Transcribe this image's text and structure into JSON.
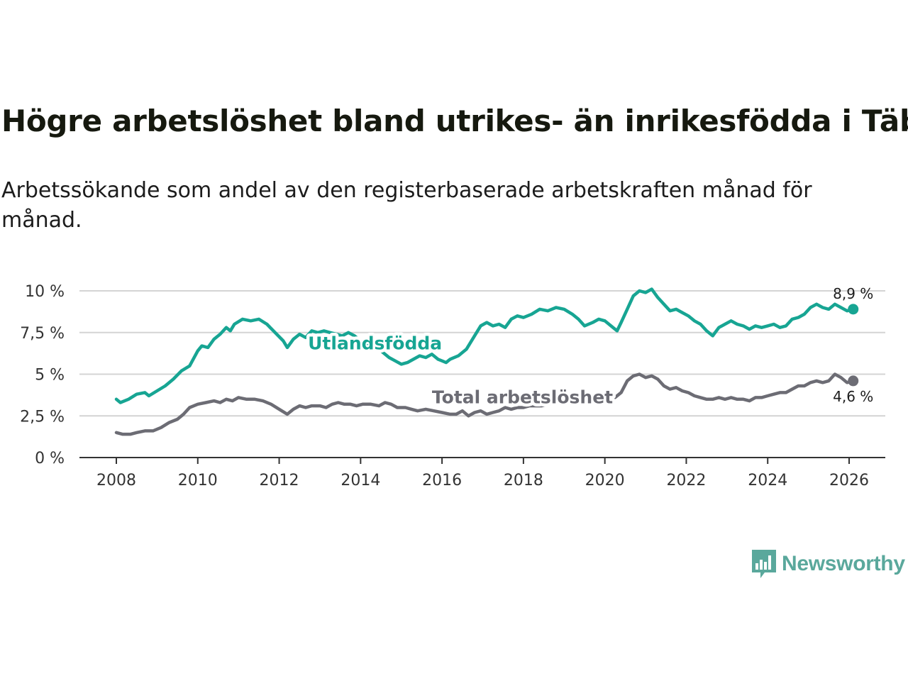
{
  "title": "Högre arbetslöshet bland utrikes- än inrikesfödda i Täby",
  "subtitle": "Arbetssökande som andel av den registerbaserade arbetskraften månad för månad.",
  "logo": {
    "text": "Newsworthy",
    "icon": "newsworthy-bar-chart-icon"
  },
  "colors": {
    "foreign": "#17a593",
    "total": "#6c6c74",
    "grid": "#d4d4d4",
    "axis": "#333333"
  },
  "chart_data": {
    "type": "line",
    "title": "Högre arbetslöshet bland utrikes- än inrikesfödda i Täby",
    "xlabel": "",
    "ylabel": "",
    "xlim": [
      2007.5,
      2027.0
    ],
    "ylim": [
      0,
      10
    ],
    "x_ticks": [
      2008,
      2010,
      2012,
      2014,
      2016,
      2018,
      2020,
      2022,
      2024,
      2026
    ],
    "y_ticks": [
      0,
      2.5,
      5,
      7.5,
      10
    ],
    "x_tick_labels": [
      "2008",
      "2010",
      "2012",
      "2014",
      "2016",
      "2018",
      "2020",
      "2022",
      "2024",
      "2026"
    ],
    "y_tick_labels": [
      "0 %",
      "2,5 %",
      "5 %",
      "7,5 %",
      "10 %"
    ],
    "grid": true,
    "series": [
      {
        "name": "Utlandsfödda",
        "label": "Utlandsfödda",
        "end_label": "8,9 %",
        "color": "#17a593",
        "points": [
          [
            2008.0,
            3.5
          ],
          [
            2008.1,
            3.3
          ],
          [
            2008.3,
            3.5
          ],
          [
            2008.5,
            3.8
          ],
          [
            2008.7,
            3.9
          ],
          [
            2008.8,
            3.7
          ],
          [
            2009.0,
            4.0
          ],
          [
            2009.2,
            4.3
          ],
          [
            2009.4,
            4.7
          ],
          [
            2009.6,
            5.2
          ],
          [
            2009.8,
            5.5
          ],
          [
            2010.0,
            6.4
          ],
          [
            2010.1,
            6.7
          ],
          [
            2010.25,
            6.6
          ],
          [
            2010.4,
            7.1
          ],
          [
            2010.55,
            7.4
          ],
          [
            2010.7,
            7.8
          ],
          [
            2010.8,
            7.6
          ],
          [
            2010.9,
            8.0
          ],
          [
            2011.1,
            8.3
          ],
          [
            2011.3,
            8.2
          ],
          [
            2011.5,
            8.3
          ],
          [
            2011.7,
            8.0
          ],
          [
            2011.9,
            7.5
          ],
          [
            2012.1,
            7.0
          ],
          [
            2012.2,
            6.6
          ],
          [
            2012.35,
            7.1
          ],
          [
            2012.5,
            7.4
          ],
          [
            2012.65,
            7.2
          ],
          [
            2012.8,
            7.6
          ],
          [
            2012.95,
            7.5
          ],
          [
            2013.1,
            7.6
          ],
          [
            2013.25,
            7.5
          ],
          [
            2013.4,
            7.4
          ],
          [
            2013.55,
            7.3
          ],
          [
            2013.7,
            7.5
          ],
          [
            2013.85,
            7.3
          ],
          [
            2014.0,
            7.0
          ],
          [
            2014.2,
            6.8
          ],
          [
            2014.4,
            6.6
          ],
          [
            2014.55,
            6.3
          ],
          [
            2014.7,
            6.0
          ],
          [
            2014.85,
            5.8
          ],
          [
            2015.0,
            5.6
          ],
          [
            2015.15,
            5.7
          ],
          [
            2015.3,
            5.9
          ],
          [
            2015.45,
            6.1
          ],
          [
            2015.6,
            6.0
          ],
          [
            2015.75,
            6.2
          ],
          [
            2015.9,
            5.9
          ],
          [
            2016.0,
            5.8
          ],
          [
            2016.1,
            5.7
          ],
          [
            2016.2,
            5.9
          ],
          [
            2016.4,
            6.1
          ],
          [
            2016.6,
            6.5
          ],
          [
            2016.8,
            7.3
          ],
          [
            2016.95,
            7.9
          ],
          [
            2017.1,
            8.1
          ],
          [
            2017.25,
            7.9
          ],
          [
            2017.4,
            8.0
          ],
          [
            2017.55,
            7.8
          ],
          [
            2017.7,
            8.3
          ],
          [
            2017.85,
            8.5
          ],
          [
            2018.0,
            8.4
          ],
          [
            2018.2,
            8.6
          ],
          [
            2018.4,
            8.9
          ],
          [
            2018.6,
            8.8
          ],
          [
            2018.8,
            9.0
          ],
          [
            2019.0,
            8.9
          ],
          [
            2019.2,
            8.6
          ],
          [
            2019.35,
            8.3
          ],
          [
            2019.5,
            7.9
          ],
          [
            2019.7,
            8.1
          ],
          [
            2019.85,
            8.3
          ],
          [
            2020.0,
            8.2
          ],
          [
            2020.15,
            7.9
          ],
          [
            2020.3,
            7.6
          ],
          [
            2020.4,
            8.1
          ],
          [
            2020.55,
            8.9
          ],
          [
            2020.7,
            9.7
          ],
          [
            2020.85,
            10.0
          ],
          [
            2021.0,
            9.9
          ],
          [
            2021.15,
            10.1
          ],
          [
            2021.3,
            9.6
          ],
          [
            2021.45,
            9.2
          ],
          [
            2021.6,
            8.8
          ],
          [
            2021.75,
            8.9
          ],
          [
            2021.9,
            8.7
          ],
          [
            2022.05,
            8.5
          ],
          [
            2022.2,
            8.2
          ],
          [
            2022.35,
            8.0
          ],
          [
            2022.5,
            7.6
          ],
          [
            2022.65,
            7.3
          ],
          [
            2022.8,
            7.8
          ],
          [
            2022.95,
            8.0
          ],
          [
            2023.1,
            8.2
          ],
          [
            2023.25,
            8.0
          ],
          [
            2023.4,
            7.9
          ],
          [
            2023.55,
            7.7
          ],
          [
            2023.7,
            7.9
          ],
          [
            2023.85,
            7.8
          ],
          [
            2024.0,
            7.9
          ],
          [
            2024.15,
            8.0
          ],
          [
            2024.3,
            7.8
          ],
          [
            2024.45,
            7.9
          ],
          [
            2024.6,
            8.3
          ],
          [
            2024.75,
            8.4
          ],
          [
            2024.9,
            8.6
          ],
          [
            2025.05,
            9.0
          ],
          [
            2025.2,
            9.2
          ],
          [
            2025.35,
            9.0
          ],
          [
            2025.5,
            8.9
          ],
          [
            2025.65,
            9.2
          ],
          [
            2025.8,
            9.0
          ],
          [
            2025.95,
            8.8
          ],
          [
            2026.1,
            8.9
          ]
        ]
      },
      {
        "name": "Total arbetslöshet",
        "label": "Total arbetslöshet",
        "end_label": "4,6 %",
        "color": "#6c6c74",
        "points": [
          [
            2008.0,
            1.5
          ],
          [
            2008.15,
            1.4
          ],
          [
            2008.35,
            1.4
          ],
          [
            2008.5,
            1.5
          ],
          [
            2008.7,
            1.6
          ],
          [
            2008.9,
            1.6
          ],
          [
            2009.1,
            1.8
          ],
          [
            2009.3,
            2.1
          ],
          [
            2009.5,
            2.3
          ],
          [
            2009.65,
            2.6
          ],
          [
            2009.8,
            3.0
          ],
          [
            2010.0,
            3.2
          ],
          [
            2010.2,
            3.3
          ],
          [
            2010.4,
            3.4
          ],
          [
            2010.55,
            3.3
          ],
          [
            2010.7,
            3.5
          ],
          [
            2010.85,
            3.4
          ],
          [
            2011.0,
            3.6
          ],
          [
            2011.2,
            3.5
          ],
          [
            2011.4,
            3.5
          ],
          [
            2011.6,
            3.4
          ],
          [
            2011.8,
            3.2
          ],
          [
            2012.0,
            2.9
          ],
          [
            2012.2,
            2.6
          ],
          [
            2012.35,
            2.9
          ],
          [
            2012.5,
            3.1
          ],
          [
            2012.65,
            3.0
          ],
          [
            2012.8,
            3.1
          ],
          [
            2013.0,
            3.1
          ],
          [
            2013.15,
            3.0
          ],
          [
            2013.3,
            3.2
          ],
          [
            2013.45,
            3.3
          ],
          [
            2013.6,
            3.2
          ],
          [
            2013.75,
            3.2
          ],
          [
            2013.9,
            3.1
          ],
          [
            2014.05,
            3.2
          ],
          [
            2014.25,
            3.2
          ],
          [
            2014.45,
            3.1
          ],
          [
            2014.6,
            3.3
          ],
          [
            2014.75,
            3.2
          ],
          [
            2014.9,
            3.0
          ],
          [
            2015.1,
            3.0
          ],
          [
            2015.25,
            2.9
          ],
          [
            2015.4,
            2.8
          ],
          [
            2015.6,
            2.9
          ],
          [
            2015.8,
            2.8
          ],
          [
            2016.0,
            2.7
          ],
          [
            2016.2,
            2.6
          ],
          [
            2016.35,
            2.6
          ],
          [
            2016.5,
            2.8
          ],
          [
            2016.65,
            2.5
          ],
          [
            2016.8,
            2.7
          ],
          [
            2016.95,
            2.8
          ],
          [
            2017.1,
            2.6
          ],
          [
            2017.25,
            2.7
          ],
          [
            2017.4,
            2.8
          ],
          [
            2017.55,
            3.0
          ],
          [
            2017.7,
            2.9
          ],
          [
            2017.85,
            3.0
          ],
          [
            2018.0,
            3.0
          ],
          [
            2018.15,
            3.1
          ],
          [
            2018.3,
            3.1
          ],
          [
            2018.45,
            3.1
          ],
          [
            2018.6,
            3.2
          ],
          [
            2018.75,
            3.2
          ],
          [
            2018.9,
            3.3
          ],
          [
            2019.05,
            3.3
          ],
          [
            2019.2,
            3.4
          ],
          [
            2019.35,
            3.4
          ],
          [
            2019.5,
            3.4
          ],
          [
            2019.65,
            3.5
          ],
          [
            2019.8,
            3.5
          ],
          [
            2019.95,
            3.5
          ],
          [
            2020.1,
            3.6
          ],
          [
            2020.25,
            3.6
          ],
          [
            2020.4,
            3.9
          ],
          [
            2020.55,
            4.6
          ],
          [
            2020.7,
            4.9
          ],
          [
            2020.85,
            5.0
          ],
          [
            2021.0,
            4.8
          ],
          [
            2021.15,
            4.9
          ],
          [
            2021.3,
            4.7
          ],
          [
            2021.45,
            4.3
          ],
          [
            2021.6,
            4.1
          ],
          [
            2021.75,
            4.2
          ],
          [
            2021.9,
            4.0
          ],
          [
            2022.05,
            3.9
          ],
          [
            2022.2,
            3.7
          ],
          [
            2022.35,
            3.6
          ],
          [
            2022.5,
            3.5
          ],
          [
            2022.65,
            3.5
          ],
          [
            2022.8,
            3.6
          ],
          [
            2022.95,
            3.5
          ],
          [
            2023.1,
            3.6
          ],
          [
            2023.25,
            3.5
          ],
          [
            2023.4,
            3.5
          ],
          [
            2023.55,
            3.4
          ],
          [
            2023.7,
            3.6
          ],
          [
            2023.85,
            3.6
          ],
          [
            2024.0,
            3.7
          ],
          [
            2024.15,
            3.8
          ],
          [
            2024.3,
            3.9
          ],
          [
            2024.45,
            3.9
          ],
          [
            2024.6,
            4.1
          ],
          [
            2024.75,
            4.3
          ],
          [
            2024.9,
            4.3
          ],
          [
            2025.05,
            4.5
          ],
          [
            2025.2,
            4.6
          ],
          [
            2025.35,
            4.5
          ],
          [
            2025.5,
            4.6
          ],
          [
            2025.65,
            5.0
          ],
          [
            2025.8,
            4.8
          ],
          [
            2025.95,
            4.5
          ],
          [
            2026.1,
            4.6
          ]
        ]
      }
    ]
  }
}
